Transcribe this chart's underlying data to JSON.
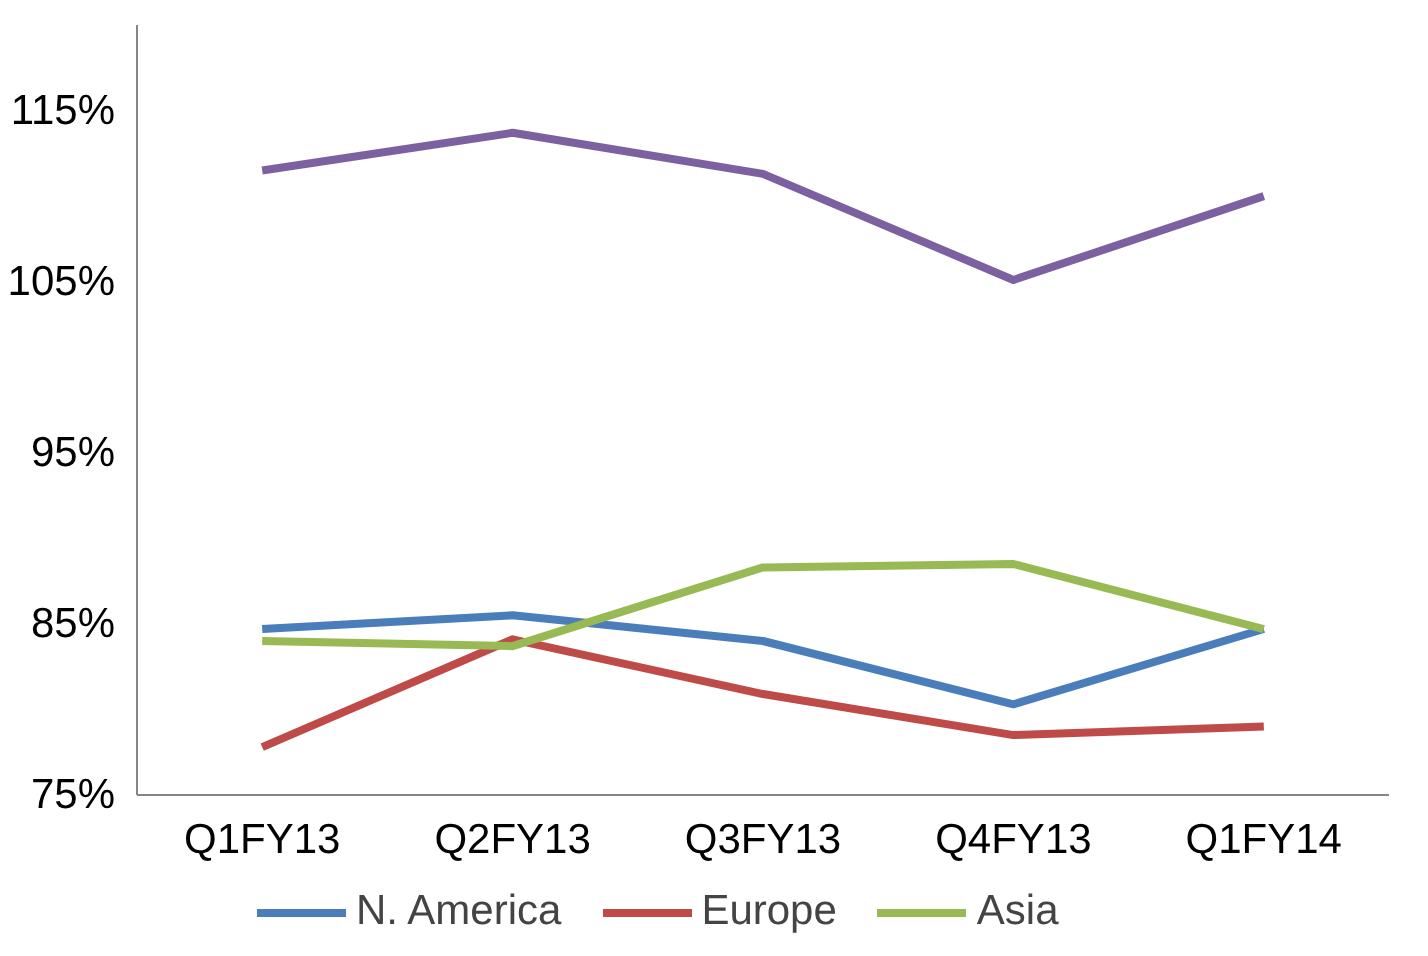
{
  "chart_data": {
    "type": "line",
    "categories": [
      "Q1FY13",
      "Q2FY13",
      "Q3FY13",
      "Q4FY13",
      "Q1FY14"
    ],
    "series": [
      {
        "name": "N. America",
        "color": "#4a7ebb",
        "values": [
          84.7,
          85.5,
          84.0,
          80.3,
          84.7
        ]
      },
      {
        "name": "Europe",
        "color": "#be4b48",
        "values": [
          77.8,
          84.1,
          80.9,
          78.5,
          79.0
        ]
      },
      {
        "name": "Asia",
        "color": "#98b954",
        "values": [
          84.0,
          83.7,
          88.3,
          88.5,
          84.7
        ]
      },
      {
        "color": "#7d60a0",
        "values": [
          111.5,
          113.7,
          111.3,
          105.1,
          110.0
        ]
      }
    ],
    "ylim": [
      75,
      120
    ],
    "yticks": [
      {
        "value": 75,
        "label": "75%"
      },
      {
        "value": 85,
        "label": "85%"
      },
      {
        "value": 95,
        "label": "95%"
      },
      {
        "value": 105,
        "label": "105%"
      },
      {
        "value": 115,
        "label": "115%"
      }
    ],
    "grid": false,
    "legend": "bottom",
    "marker": "none",
    "line_style": "solid"
  }
}
